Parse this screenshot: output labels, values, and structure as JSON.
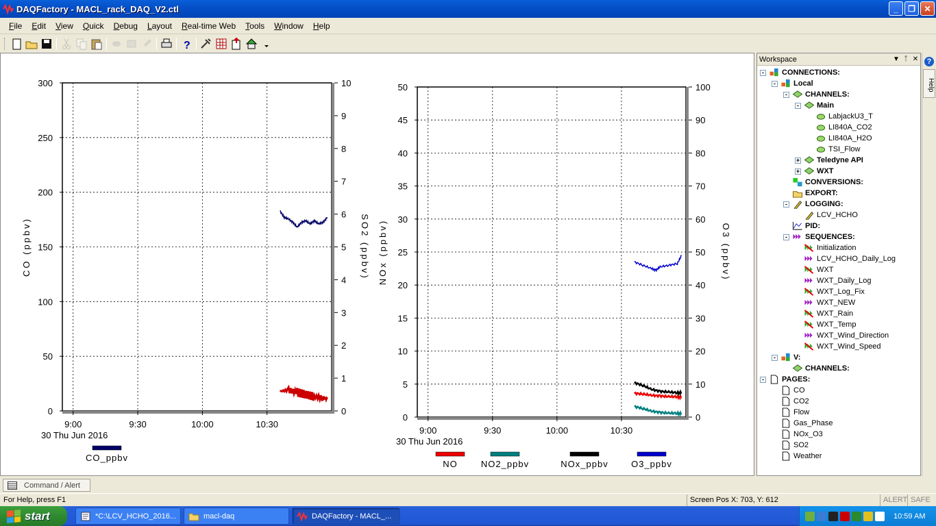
{
  "window": {
    "title": "DAQFactory - MACL_rack_DAQ_V2.ctl",
    "minimize": "_",
    "restore": "❐",
    "close": "✕"
  },
  "menu": [
    {
      "label": "File",
      "ul": "F",
      "rest": "ile"
    },
    {
      "label": "Edit",
      "ul": "E",
      "rest": "dit"
    },
    {
      "label": "View",
      "ul": "V",
      "rest": "iew"
    },
    {
      "label": "Quick",
      "ul": "Q",
      "rest": "uick"
    },
    {
      "label": "Debug",
      "ul": "D",
      "rest": "ebug"
    },
    {
      "label": "Layout",
      "ul": "L",
      "rest": "ayout"
    },
    {
      "label": "Real-time Web",
      "ul": "R",
      "rest": "eal-time Web"
    },
    {
      "label": "Tools",
      "ul": "T",
      "rest": "ools"
    },
    {
      "label": "Window",
      "ul": "W",
      "rest": "indow"
    },
    {
      "label": "Help",
      "ul": "H",
      "rest": "elp"
    }
  ],
  "toolbar_icons": [
    "new-icon",
    "open-icon",
    "save-icon",
    "cut-icon",
    "copy-icon",
    "paste-icon",
    "undo-icon",
    "redo-icon",
    "brush-icon",
    "print-icon",
    "help-icon",
    "tools-icon",
    "grid-icon",
    "export-icon",
    "network-icon"
  ],
  "chart_data": [
    {
      "type": "line",
      "x_ticks": [
        "9:00",
        "9:30",
        "10:00",
        "10:30"
      ],
      "x_date_label": "30 Thu Jun 2016",
      "ylabel": "CO  (ppbv)",
      "y2label": "SO2  (ppbv)",
      "ylim": [
        0,
        300
      ],
      "y2lim": [
        0,
        10
      ],
      "y_ticks": [
        "300",
        "250",
        "200",
        "150",
        "100",
        "50",
        "0"
      ],
      "y2_ticks": [
        "10",
        "9",
        "8",
        "7",
        "6",
        "5",
        "4",
        "3",
        "2",
        "1",
        "0"
      ],
      "grid": true,
      "legend_position": "bottom",
      "series": [
        {
          "name": "CO_ppbv",
          "axis": "left",
          "color": "#000066",
          "note": "plotted on y2 scale near 6",
          "x": [
            "10:36",
            "10:38",
            "10:40",
            "10:42",
            "10:44",
            "10:46",
            "10:48",
            "10:50",
            "10:52",
            "10:54",
            "10:56",
            "10:58"
          ],
          "values": [
            6.1,
            5.9,
            5.85,
            5.75,
            5.6,
            5.75,
            5.8,
            5.7,
            5.8,
            5.7,
            5.75,
            5.9
          ]
        },
        {
          "name": "SO2",
          "axis": "left",
          "color": "#cc0000",
          "legend": false,
          "x": [
            "10:36",
            "10:40",
            "10:44",
            "10:48",
            "10:52",
            "10:56",
            "10:58"
          ],
          "values": [
            18,
            19,
            17,
            15,
            13,
            12,
            11
          ]
        }
      ]
    },
    {
      "type": "line",
      "x_ticks": [
        "9:00",
        "9:30",
        "10:00",
        "10:30"
      ],
      "x_date_label": "30 Thu Jun 2016",
      "ylabel": "NOx  (ppbv)",
      "y2label": "O3  (ppbv)",
      "ylim": [
        0,
        50
      ],
      "y2lim": [
        0,
        100
      ],
      "y_ticks": [
        "50",
        "45",
        "40",
        "35",
        "30",
        "25",
        "20",
        "15",
        "10",
        "5",
        "0"
      ],
      "y2_ticks": [
        "100",
        "90",
        "80",
        "70",
        "60",
        "50",
        "40",
        "30",
        "20",
        "10",
        "0"
      ],
      "grid": true,
      "legend_position": "bottom",
      "series": [
        {
          "name": "NO",
          "color": "#ee0000",
          "x": [
            "10:36",
            "10:40",
            "10:44",
            "10:48",
            "10:52",
            "10:56",
            "10:58"
          ],
          "values": [
            3.6,
            3.5,
            3.3,
            3.2,
            3.1,
            3.1,
            3.0
          ]
        },
        {
          "name": "NO2_ppbv",
          "color": "#008080",
          "x": [
            "10:36",
            "10:40",
            "10:44",
            "10:48",
            "10:52",
            "10:56",
            "10:58"
          ],
          "values": [
            1.6,
            1.3,
            0.9,
            0.7,
            0.6,
            0.6,
            0.5
          ]
        },
        {
          "name": "NOx_ppbv",
          "color": "#000000",
          "x": [
            "10:36",
            "10:40",
            "10:44",
            "10:48",
            "10:52",
            "10:56",
            "10:58"
          ],
          "values": [
            5.2,
            4.8,
            4.2,
            3.9,
            3.8,
            3.7,
            3.7
          ]
        },
        {
          "name": "O3_ppbv",
          "color": "#0000cc",
          "axis": "right",
          "x": [
            "10:36",
            "10:40",
            "10:44",
            "10:46",
            "10:48",
            "10:52",
            "10:56",
            "10:58"
          ],
          "values": [
            47,
            46,
            45,
            44.5,
            45.5,
            46,
            46.5,
            49
          ]
        }
      ]
    }
  ],
  "workspace": {
    "title": "Workspace",
    "tree": [
      {
        "label": "CONNECTIONS:",
        "level": 0,
        "exp": "-",
        "icon": "connections-icon",
        "bold": true
      },
      {
        "label": "Local",
        "level": 1,
        "exp": "-",
        "icon": "connections-icon",
        "bold": true
      },
      {
        "label": "CHANNELS:",
        "level": 2,
        "exp": "-",
        "icon": "channels-icon",
        "bold": true
      },
      {
        "label": "Main",
        "level": 3,
        "exp": "-",
        "icon": "channels-icon",
        "bold": true
      },
      {
        "label": "LabjackU3_T",
        "level": 4,
        "exp": "",
        "icon": "channel-icon",
        "bold": false
      },
      {
        "label": "LI840A_CO2",
        "level": 4,
        "exp": "",
        "icon": "channel-icon",
        "bold": false
      },
      {
        "label": "LI840A_H2O",
        "level": 4,
        "exp": "",
        "icon": "channel-icon",
        "bold": false
      },
      {
        "label": "TSI_Flow",
        "level": 4,
        "exp": "",
        "icon": "channel-icon",
        "bold": false
      },
      {
        "label": "Teledyne API",
        "level": 3,
        "exp": "+",
        "icon": "channels-icon",
        "bold": true
      },
      {
        "label": "WXT",
        "level": 3,
        "exp": "+",
        "icon": "channels-icon",
        "bold": true
      },
      {
        "label": "CONVERSIONS:",
        "level": 2,
        "exp": "",
        "icon": "conversions-icon",
        "bold": true
      },
      {
        "label": "EXPORT:",
        "level": 2,
        "exp": "",
        "icon": "export-icon",
        "bold": true
      },
      {
        "label": "LOGGING:",
        "level": 2,
        "exp": "-",
        "icon": "logging-icon",
        "bold": true
      },
      {
        "label": "LCV_HCHO",
        "level": 3,
        "exp": "",
        "icon": "logging-icon",
        "bold": false
      },
      {
        "label": "PID:",
        "level": 2,
        "exp": "",
        "icon": "pid-icon",
        "bold": true
      },
      {
        "label": "SEQUENCES:",
        "level": 2,
        "exp": "-",
        "icon": "sequences-icon",
        "bold": true
      },
      {
        "label": "Initialization",
        "level": 3,
        "exp": "",
        "icon": "sequence-stopped-icon",
        "bold": false
      },
      {
        "label": "LCV_HCHO_Daily_Log",
        "level": 3,
        "exp": "",
        "icon": "sequence-running-icon",
        "bold": false
      },
      {
        "label": "WXT",
        "level": 3,
        "exp": "",
        "icon": "sequence-stopped-icon",
        "bold": false
      },
      {
        "label": "WXT_Daily_Log",
        "level": 3,
        "exp": "",
        "icon": "sequence-running-icon",
        "bold": false
      },
      {
        "label": "WXT_Log_Fix",
        "level": 3,
        "exp": "",
        "icon": "sequence-stopped-icon",
        "bold": false
      },
      {
        "label": "WXT_NEW",
        "level": 3,
        "exp": "",
        "icon": "sequence-running-icon",
        "bold": false
      },
      {
        "label": "WXT_Rain",
        "level": 3,
        "exp": "",
        "icon": "sequence-stopped-icon",
        "bold": false
      },
      {
        "label": "WXT_Temp",
        "level": 3,
        "exp": "",
        "icon": "sequence-stopped-icon",
        "bold": false
      },
      {
        "label": "WXT_Wind_Direction",
        "level": 3,
        "exp": "",
        "icon": "sequence-running-icon",
        "bold": false
      },
      {
        "label": "WXT_Wind_Speed",
        "level": 3,
        "exp": "",
        "icon": "sequence-stopped-icon",
        "bold": false
      },
      {
        "label": "V:",
        "level": 1,
        "exp": "-",
        "icon": "connections-icon",
        "bold": true
      },
      {
        "label": "CHANNELS:",
        "level": 2,
        "exp": "",
        "icon": "channels-icon",
        "bold": true
      },
      {
        "label": "PAGES:",
        "level": 0,
        "exp": "-",
        "icon": "page-icon",
        "bold": true
      },
      {
        "label": "CO",
        "level": 1,
        "exp": "",
        "icon": "page-icon",
        "bold": false
      },
      {
        "label": "CO2",
        "level": 1,
        "exp": "",
        "icon": "page-icon",
        "bold": false
      },
      {
        "label": "Flow",
        "level": 1,
        "exp": "",
        "icon": "page-icon",
        "bold": false
      },
      {
        "label": "Gas_Phase",
        "level": 1,
        "exp": "",
        "icon": "page-icon",
        "bold": false
      },
      {
        "label": "NOx_O3",
        "level": 1,
        "exp": "",
        "icon": "page-icon",
        "bold": false
      },
      {
        "label": "SO2",
        "level": 1,
        "exp": "",
        "icon": "page-icon",
        "bold": false
      },
      {
        "label": "Weather",
        "level": 1,
        "exp": "",
        "icon": "page-icon",
        "bold": false
      }
    ]
  },
  "help_tab": "Help",
  "command_tab": "Command / Alert",
  "status": {
    "help_text": "For Help, press F1",
    "screen_pos": "Screen Pos X: 703, Y: 612",
    "alert": "ALERT",
    "safe": "SAFE"
  },
  "taskbar": {
    "start": "start",
    "tasks": [
      {
        "label": "*C:\\LCV_HCHO_2016...",
        "icon": "notepad-icon"
      },
      {
        "label": "macl-daq",
        "icon": "folder-icon"
      },
      {
        "label": "DAQFactory - MACL_...",
        "icon": "daqfactory-icon"
      }
    ],
    "clock": "10:59 AM"
  }
}
